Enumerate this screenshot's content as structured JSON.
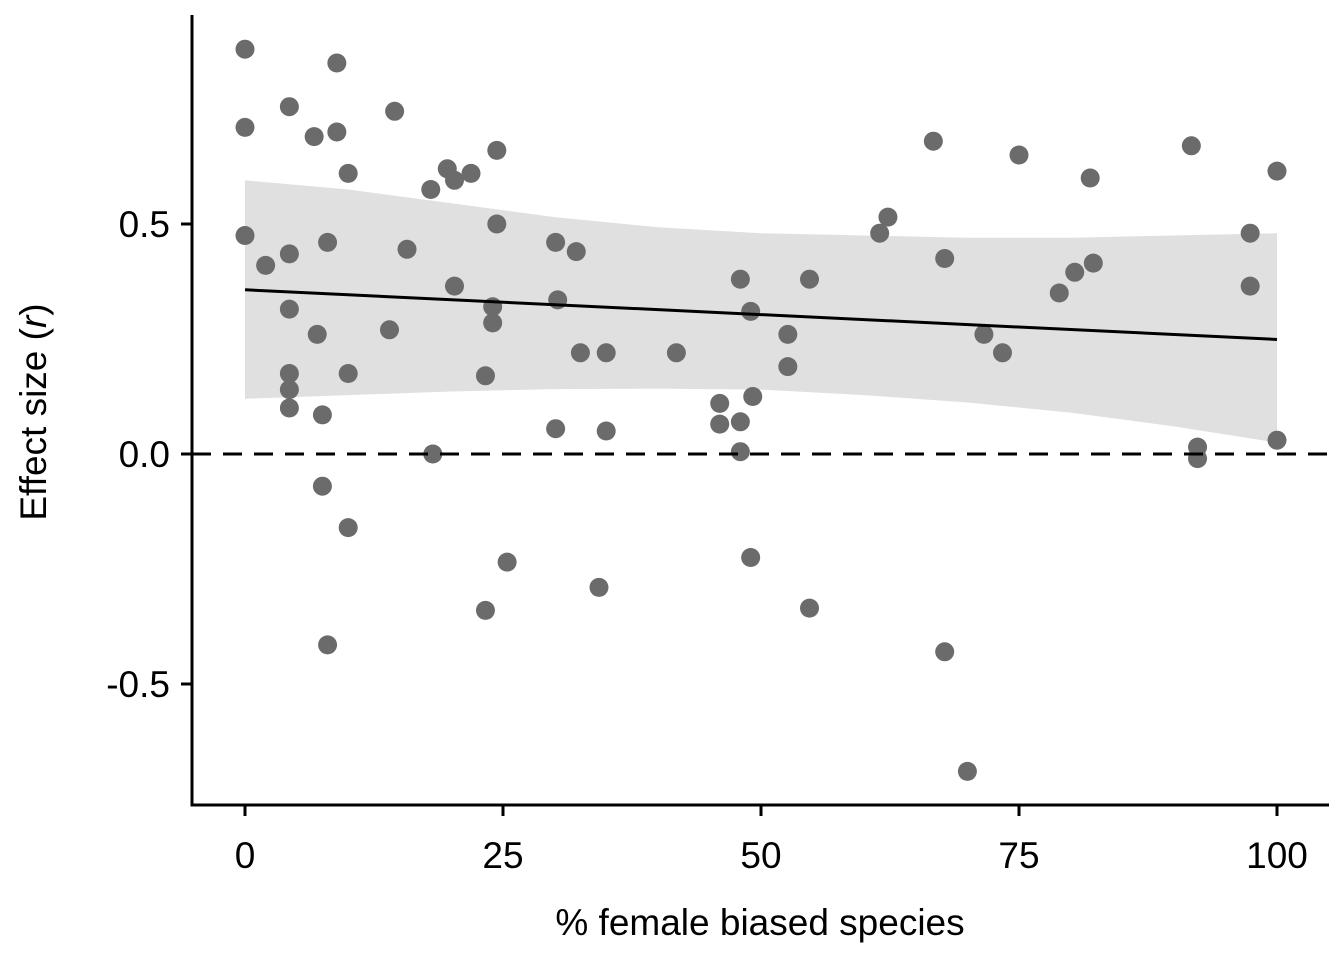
{
  "chart_data": {
    "type": "scatter",
    "xlabel": "% female biased species",
    "ylabel_main": "Effect size (",
    "ylabel_italic": "r",
    "ylabel_end": ")",
    "xlim": [
      -5,
      105
    ],
    "ylim": [
      -0.76,
      0.96
    ],
    "x_ticks": [
      0,
      25,
      50,
      75,
      100
    ],
    "x_tick_labels": [
      "0",
      "25",
      "50",
      "75",
      "100"
    ],
    "y_ticks": [
      -0.5,
      0.0,
      0.5
    ],
    "y_tick_labels": [
      "-0.5",
      "0.0",
      "0.5"
    ],
    "reference_line_y": 0,
    "trend": {
      "x": [
        0,
        100
      ],
      "y": [
        0.357,
        0.249
      ]
    },
    "confidence_band": {
      "x": [
        0,
        10,
        20,
        30,
        40,
        50,
        60,
        70,
        80,
        90,
        100
      ],
      "lower": [
        0.12,
        0.128,
        0.136,
        0.141,
        0.142,
        0.14,
        0.128,
        0.112,
        0.09,
        0.06,
        0.025
      ],
      "upper": [
        0.595,
        0.575,
        0.545,
        0.515,
        0.493,
        0.48,
        0.475,
        0.47,
        0.47,
        0.475,
        0.48
      ]
    },
    "points": [
      {
        "x": 0,
        "y": 0.88
      },
      {
        "x": 0,
        "y": 0.71
      },
      {
        "x": 0,
        "y": 0.475
      },
      {
        "x": 2,
        "y": 0.41
      },
      {
        "x": 4.3,
        "y": 0.755
      },
      {
        "x": 4.3,
        "y": 0.435
      },
      {
        "x": 4.3,
        "y": 0.315
      },
      {
        "x": 4.3,
        "y": 0.175
      },
      {
        "x": 4.3,
        "y": 0.14
      },
      {
        "x": 4.3,
        "y": 0.1
      },
      {
        "x": 6.7,
        "y": 0.69
      },
      {
        "x": 7,
        "y": 0.26
      },
      {
        "x": 7.5,
        "y": 0.085
      },
      {
        "x": 7.5,
        "y": -0.07
      },
      {
        "x": 8,
        "y": 0.46
      },
      {
        "x": 8,
        "y": -0.415
      },
      {
        "x": 8.9,
        "y": 0.85
      },
      {
        "x": 8.9,
        "y": 0.7
      },
      {
        "x": 10,
        "y": 0.61
      },
      {
        "x": 10,
        "y": 0.175
      },
      {
        "x": 10,
        "y": -0.16
      },
      {
        "x": 14,
        "y": 0.27
      },
      {
        "x": 14.5,
        "y": 0.745
      },
      {
        "x": 15.7,
        "y": 0.445
      },
      {
        "x": 18,
        "y": 0.575
      },
      {
        "x": 18.2,
        "y": 0.0
      },
      {
        "x": 19.6,
        "y": 0.62
      },
      {
        "x": 20.3,
        "y": 0.595
      },
      {
        "x": 20.3,
        "y": 0.365
      },
      {
        "x": 21.9,
        "y": 0.61
      },
      {
        "x": 23.3,
        "y": 0.17
      },
      {
        "x": 23.3,
        "y": -0.34
      },
      {
        "x": 24,
        "y": 0.32
      },
      {
        "x": 24,
        "y": 0.285
      },
      {
        "x": 24.4,
        "y": 0.66
      },
      {
        "x": 24.4,
        "y": 0.5
      },
      {
        "x": 25.4,
        "y": -0.235
      },
      {
        "x": 30.1,
        "y": 0.46
      },
      {
        "x": 30.1,
        "y": 0.055
      },
      {
        "x": 30.3,
        "y": 0.335
      },
      {
        "x": 32.1,
        "y": 0.44
      },
      {
        "x": 32.5,
        "y": 0.22
      },
      {
        "x": 34.3,
        "y": -0.29
      },
      {
        "x": 35,
        "y": 0.22
      },
      {
        "x": 35,
        "y": 0.05
      },
      {
        "x": 41.8,
        "y": 0.22
      },
      {
        "x": 46,
        "y": 0.11
      },
      {
        "x": 46,
        "y": 0.065
      },
      {
        "x": 48,
        "y": 0.38
      },
      {
        "x": 48,
        "y": 0.07
      },
      {
        "x": 48,
        "y": 0.005
      },
      {
        "x": 49,
        "y": 0.31
      },
      {
        "x": 49,
        "y": -0.225
      },
      {
        "x": 49.2,
        "y": 0.125
      },
      {
        "x": 52.6,
        "y": 0.26
      },
      {
        "x": 52.6,
        "y": 0.19
      },
      {
        "x": 54.7,
        "y": 0.38
      },
      {
        "x": 54.7,
        "y": -0.335
      },
      {
        "x": 61.5,
        "y": 0.48
      },
      {
        "x": 62.3,
        "y": 0.515
      },
      {
        "x": 66.7,
        "y": 0.68
      },
      {
        "x": 67.8,
        "y": 0.425
      },
      {
        "x": 67.8,
        "y": -0.43
      },
      {
        "x": 70,
        "y": -0.69
      },
      {
        "x": 71.6,
        "y": 0.26
      },
      {
        "x": 73.4,
        "y": 0.22
      },
      {
        "x": 75,
        "y": 0.65
      },
      {
        "x": 78.9,
        "y": 0.35
      },
      {
        "x": 80.4,
        "y": 0.395
      },
      {
        "x": 81.9,
        "y": 0.6
      },
      {
        "x": 82.2,
        "y": 0.415
      },
      {
        "x": 91.7,
        "y": 0.67
      },
      {
        "x": 92.3,
        "y": 0.015
      },
      {
        "x": 92.3,
        "y": -0.01
      },
      {
        "x": 97.4,
        "y": 0.48
      },
      {
        "x": 97.4,
        "y": 0.365
      },
      {
        "x": 100,
        "y": 0.615
      },
      {
        "x": 100,
        "y": 0.03
      }
    ]
  }
}
